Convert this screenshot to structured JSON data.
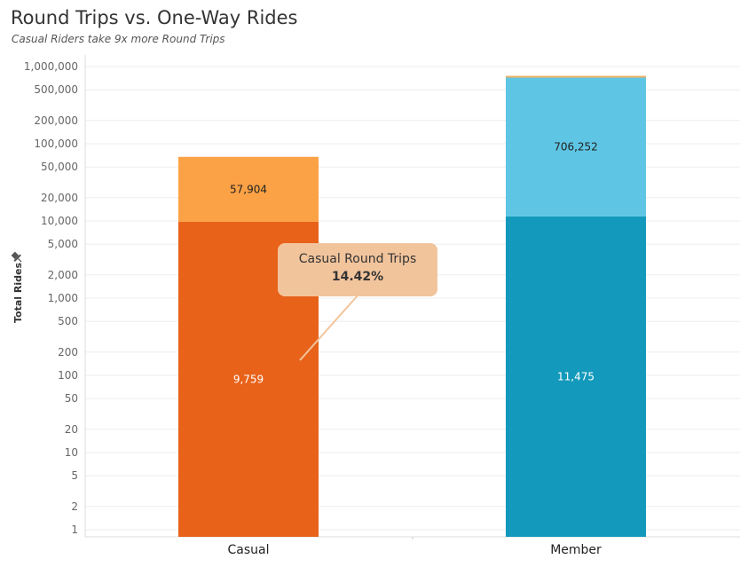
{
  "title": "Round Trips vs. One-Way Rides",
  "subtitle": "Casual Riders take 9x more Round Trips",
  "callout": {
    "title": "Casual Round Trips",
    "value": "14.42%"
  },
  "colors": {
    "casual_round": "#e8621a",
    "casual_oneway": "#fca246",
    "member_round": "#1399bb",
    "member_oneway": "#5ec6e4",
    "member_cap": "#e8b061",
    "callout_bg": "#f2c49c",
    "grid": "#eeeeee"
  },
  "chart_data": {
    "type": "bar",
    "stacked": true,
    "yscale": "log",
    "ylabel": "Total Rides",
    "xlabel": "",
    "ylim": [
      1,
      1000000
    ],
    "yticks": [
      1,
      2,
      5,
      10,
      20,
      50,
      100,
      200,
      500,
      1000,
      2000,
      5000,
      10000,
      20000,
      50000,
      100000,
      200000,
      500000,
      1000000
    ],
    "ytick_labels": [
      "1",
      "2",
      "5",
      "10",
      "20",
      "50",
      "100",
      "200",
      "500",
      "1,000",
      "2,000",
      "5,000",
      "10,000",
      "20,000",
      "50,000",
      "100,000",
      "200,000",
      "500,000",
      "1,000,000"
    ],
    "categories": [
      "Casual",
      "Member"
    ],
    "bars": [
      {
        "category": "Casual",
        "segments": [
          {
            "value": 9759,
            "label": "9,759",
            "color": "#e8621a",
            "label_color": "#ffffff"
          },
          {
            "value": 57904,
            "label": "57,904",
            "color": "#fca246",
            "label_color": "#222222"
          }
        ]
      },
      {
        "category": "Member",
        "segments": [
          {
            "value": 11475,
            "label": "11,475",
            "color": "#1399bb",
            "label_color": "#ffffff"
          },
          {
            "value": 706252,
            "label": "706,252",
            "color": "#5ec6e4",
            "label_color": "#222222"
          }
        ]
      }
    ],
    "grid": true,
    "legend": "none"
  }
}
